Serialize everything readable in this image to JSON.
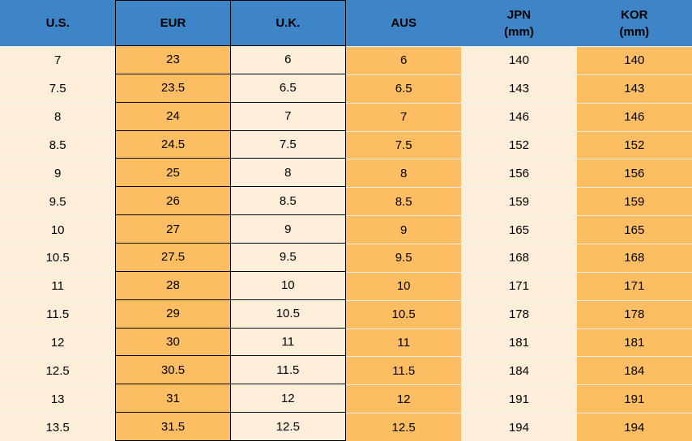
{
  "colors": {
    "header_blue": "#3d85c6",
    "orange": "#fcbd63",
    "cream": "#fdeeda",
    "border_black": "#000000",
    "row_separator": "#ededed",
    "text": "#000000"
  },
  "table": {
    "columns": [
      {
        "key": "us",
        "label": "U.S.",
        "sub": ""
      },
      {
        "key": "eur",
        "label": "EUR",
        "sub": ""
      },
      {
        "key": "uk",
        "label": "U.K.",
        "sub": ""
      },
      {
        "key": "aus",
        "label": "AUS",
        "sub": ""
      },
      {
        "key": "jpn",
        "label": "JPN",
        "sub": "(mm)"
      },
      {
        "key": "kor",
        "label": "KOR",
        "sub": "(mm)"
      }
    ]
  },
  "chart_data": {
    "type": "table",
    "title": "",
    "columns": [
      "U.S.",
      "EUR",
      "U.K.",
      "AUS",
      "JPN (mm)",
      "KOR (mm)"
    ],
    "rows": [
      [
        "7",
        "23",
        "6",
        "6",
        "140",
        "140"
      ],
      [
        "7.5",
        "23.5",
        "6.5",
        "6.5",
        "143",
        "143"
      ],
      [
        "8",
        "24",
        "7",
        "7",
        "146",
        "146"
      ],
      [
        "8.5",
        "24.5",
        "7.5",
        "7.5",
        "152",
        "152"
      ],
      [
        "9",
        "25",
        "8",
        "8",
        "156",
        "156"
      ],
      [
        "9.5",
        "26",
        "8.5",
        "8.5",
        "159",
        "159"
      ],
      [
        "10",
        "27",
        "9",
        "9",
        "165",
        "165"
      ],
      [
        "10.5",
        "27.5",
        "9.5",
        "9.5",
        "168",
        "168"
      ],
      [
        "11",
        "28",
        "10",
        "10",
        "171",
        "171"
      ],
      [
        "11.5",
        "29",
        "10.5",
        "10.5",
        "178",
        "178"
      ],
      [
        "12",
        "30",
        "11",
        "11",
        "181",
        "181"
      ],
      [
        "12.5",
        "30.5",
        "11.5",
        "11.5",
        "184",
        "184"
      ],
      [
        "13",
        "31",
        "12",
        "12",
        "191",
        "191"
      ],
      [
        "13.5",
        "31.5",
        "12.5",
        "12.5",
        "194",
        "194"
      ]
    ]
  }
}
